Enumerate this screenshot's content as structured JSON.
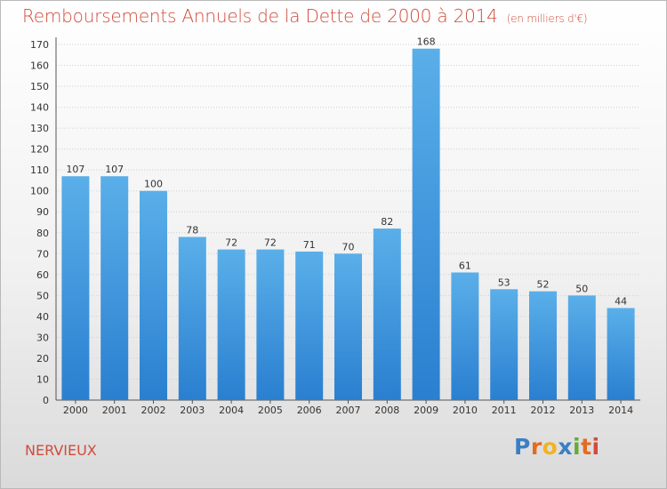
{
  "title": "Remboursements Annuels de la Dette de 2000 à 2014",
  "subtitle": "(en milliers d'€)",
  "commune": "NERVIEUX",
  "logo": {
    "letters": [
      "P",
      "r",
      "o",
      "x",
      "i",
      "t",
      "i"
    ],
    "text": "Proxiti"
  },
  "colors": {
    "bar_top": "#5aafe9",
    "bar_bottom": "#2a7fd0",
    "title": "#d24b3b"
  },
  "chart_data": {
    "type": "bar",
    "title": "Remboursements Annuels de la Dette de 2000 à 2014",
    "ylabel": "en milliers d'€",
    "xlabel": "",
    "categories": [
      "2000",
      "2001",
      "2002",
      "2003",
      "2004",
      "2005",
      "2006",
      "2007",
      "2008",
      "2009",
      "2010",
      "2011",
      "2012",
      "2013",
      "2014"
    ],
    "values": [
      107,
      107,
      100,
      78,
      72,
      72,
      71,
      70,
      82,
      168,
      61,
      53,
      52,
      50,
      44
    ],
    "ylim": [
      0,
      170
    ],
    "yticks": [
      0,
      10,
      20,
      30,
      40,
      50,
      60,
      70,
      80,
      90,
      100,
      110,
      120,
      130,
      140,
      150,
      160,
      170
    ],
    "grid": true
  }
}
